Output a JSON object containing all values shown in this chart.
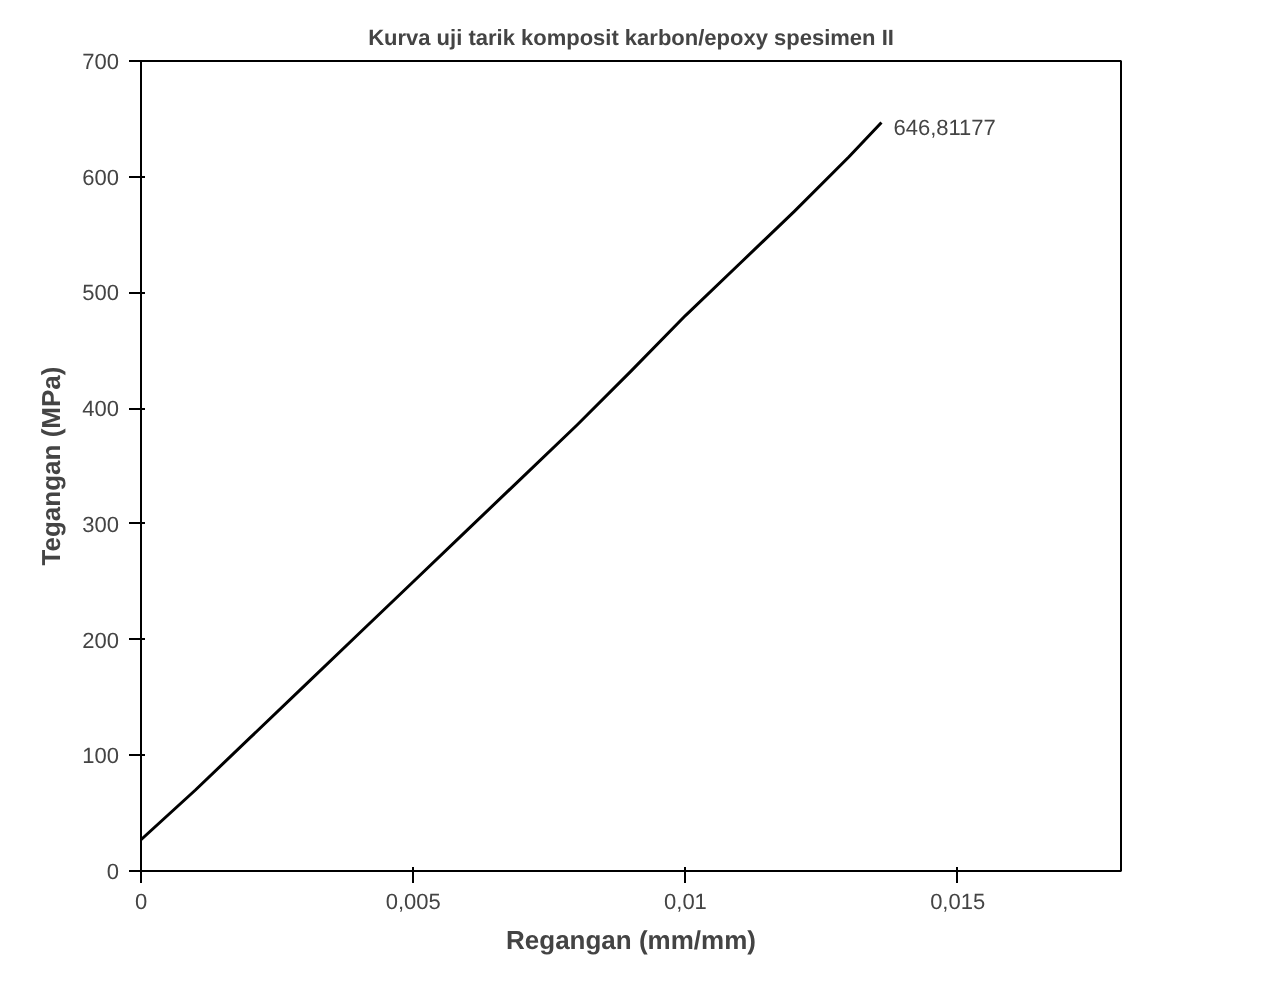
{
  "chart_data": {
    "type": "line",
    "title": "Kurva uji tarik komposit karbon/epoxy spesimen II",
    "xlabel": "Regangan (mm/mm)",
    "ylabel": "Tegangan (MPa)",
    "x": [
      0,
      0.001,
      0.002,
      0.003,
      0.004,
      0.005,
      0.006,
      0.007,
      0.008,
      0.009,
      0.01,
      0.011,
      0.012,
      0.013,
      0.0136
    ],
    "series": [
      {
        "color": "#000000",
        "values": [
          27,
          70,
          115,
          160,
          205,
          250,
          295,
          340,
          385,
          432,
          480,
          525,
          570,
          617,
          646.81177
        ]
      }
    ],
    "xlim": [
      0,
      0.018
    ],
    "ylim": [
      0,
      700
    ],
    "xticks": [
      0,
      {
        "value": 0.005,
        "label": "0,005"
      },
      {
        "value": 0.01,
        "label": "0,01"
      },
      {
        "value": 0.015,
        "label": "0,015"
      }
    ],
    "yticks": [
      0,
      100,
      200,
      300,
      400,
      500,
      600,
      700
    ],
    "grid": false,
    "marker": "none",
    "line_style": "solid",
    "annotations": [
      {
        "text": "646,81177",
        "x": 0.0136,
        "y": 646.81177
      }
    ]
  }
}
